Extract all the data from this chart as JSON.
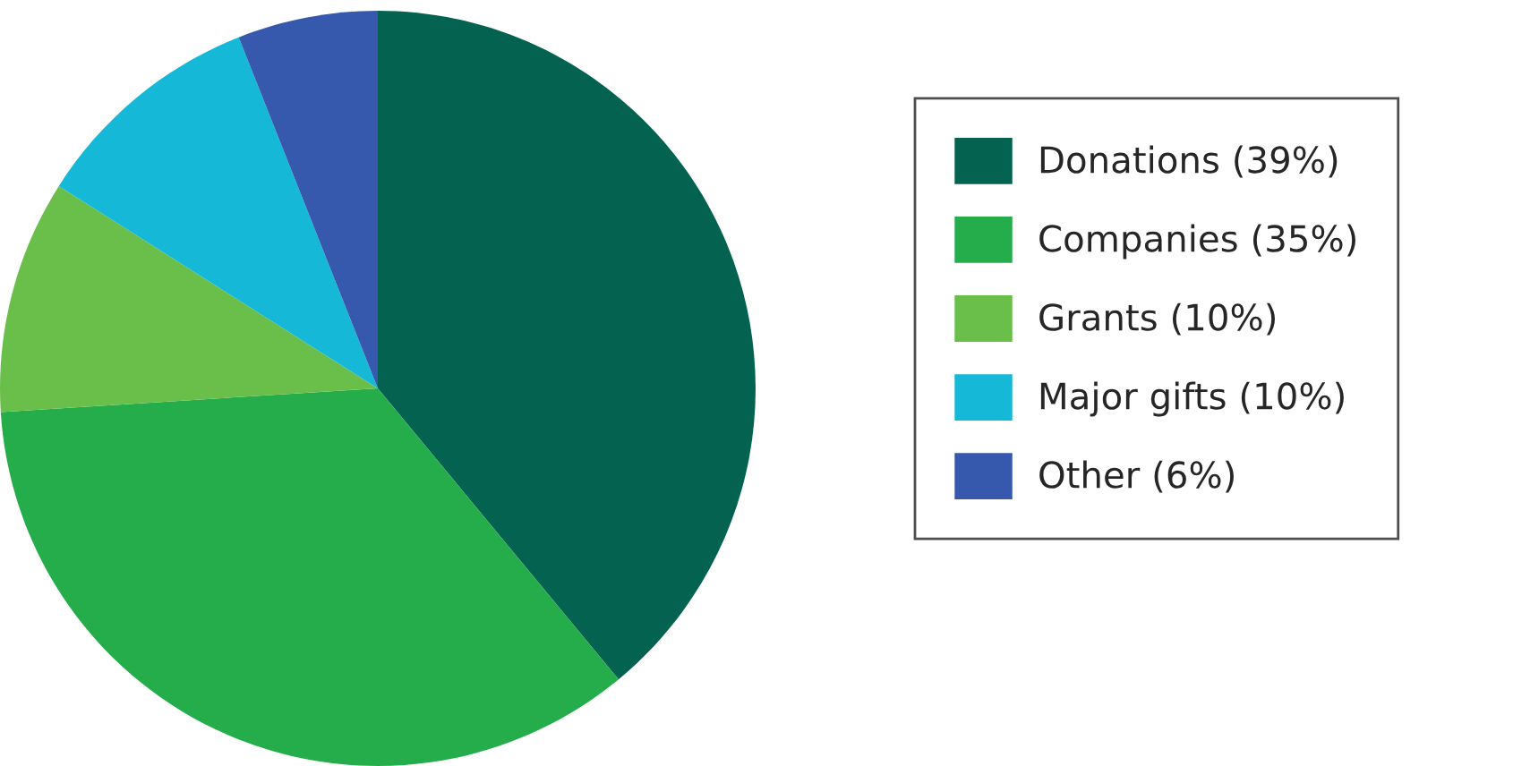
{
  "chart_data": {
    "type": "pie",
    "categories": [
      "Donations (39%)",
      "Companies (35%)",
      "Grants (10%)",
      "Major gifts (10%)",
      "Other (6%)"
    ],
    "values": [
      39,
      35,
      10,
      10,
      6
    ],
    "colors": [
      "#046350",
      "#24ad4a",
      "#6abf4b",
      "#16b8d8",
      "#3659ad"
    ],
    "legend": "right"
  }
}
